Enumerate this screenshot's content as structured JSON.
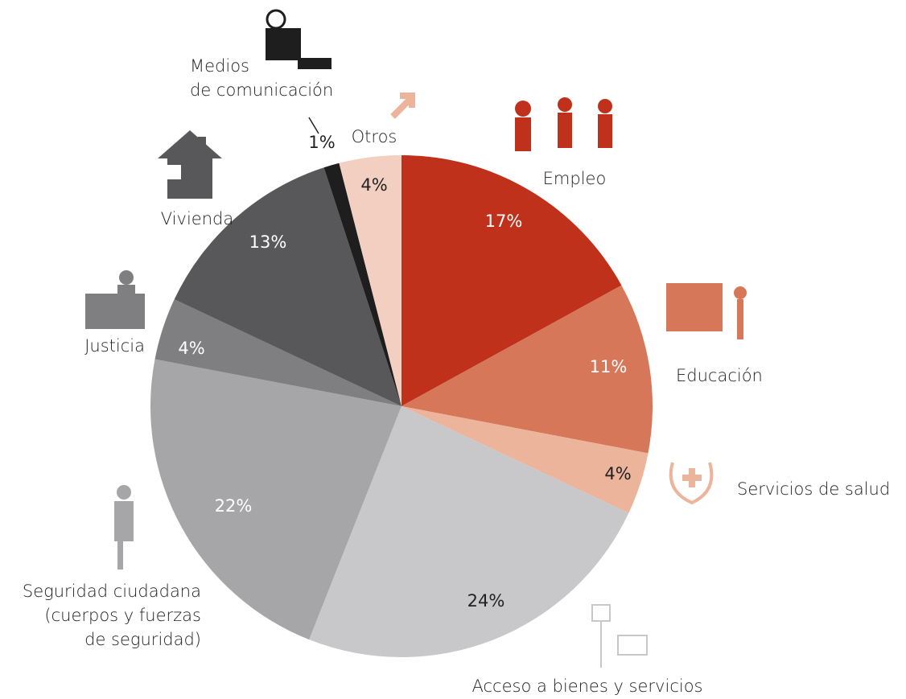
{
  "chart_data": {
    "type": "pie",
    "categories": [
      "Empleo",
      "Educación",
      "Servicios de salud",
      "Acceso a bienes y servicios",
      "Seguridad ciudadana\n(cuerpos y fuerzas\nde seguridad)",
      "Justicia",
      "Vivienda",
      "Medios\nde comunicación",
      "Otros"
    ],
    "values": [
      17,
      11,
      4,
      24,
      22,
      4,
      13,
      1,
      4
    ],
    "value_labels": [
      "17%",
      "11%",
      "4%",
      "24%",
      "22%",
      "4%",
      "13%",
      "1%",
      "4%"
    ],
    "colors": [
      "#c0311b",
      "#d6775a",
      "#ecb49b",
      "#c8c8ca",
      "#a6a6a8",
      "#7f7f81",
      "#58585a",
      "#1e1e1e",
      "#f2cfc0"
    ]
  }
}
